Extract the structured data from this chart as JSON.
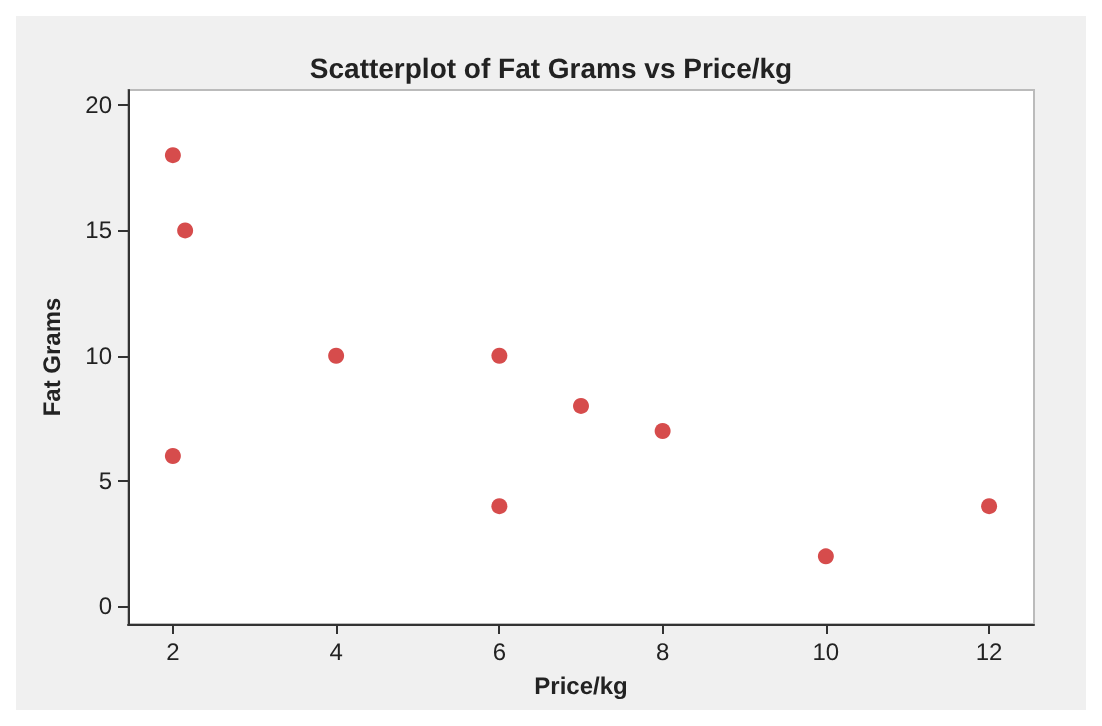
{
  "chart_data": {
    "type": "scatter",
    "title": "Scatterplot of Fat Grams vs Price/kg",
    "xlabel": "Price/kg",
    "ylabel": "Fat Grams",
    "x": [
      2,
      2.15,
      2,
      4,
      6,
      6,
      7,
      8,
      10,
      12
    ],
    "series": [
      {
        "color": "#cc1f1f",
        "values": [
          18,
          15,
          6,
          10,
          10,
          4,
          8,
          7,
          2,
          4
        ]
      }
    ],
    "xlim": [
      1.45,
      12.55
    ],
    "xticks": [
      2,
      4,
      6,
      8,
      10,
      12
    ],
    "ylim": [
      -0.7,
      20.6
    ],
    "yticks": [
      0,
      5,
      10,
      15,
      20
    ],
    "grid": false,
    "marker": "circle"
  }
}
